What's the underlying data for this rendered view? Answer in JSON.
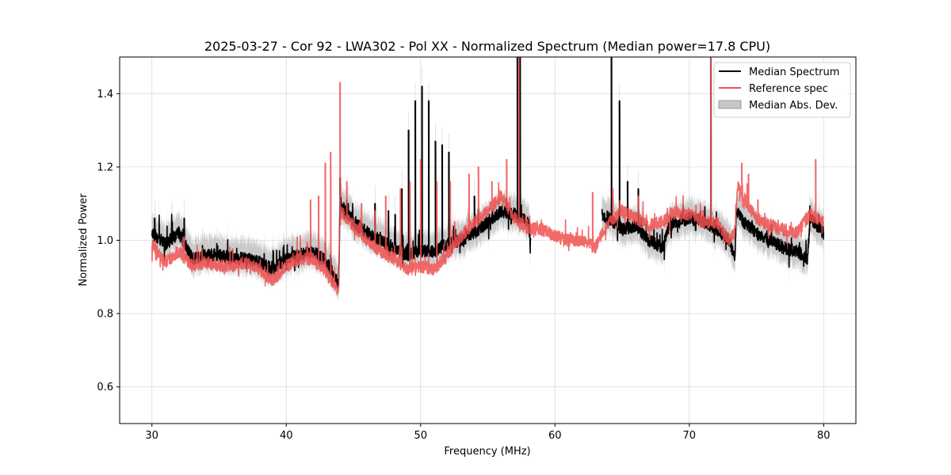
{
  "chart_data": {
    "type": "line",
    "title": "2025-03-27 - Cor 92 - LWA302 - Pol XX - Normalized Spectrum (Median power=17.8 CPU)",
    "xlabel": "Frequency (MHz)",
    "ylabel": "Normalized Power",
    "xlim": [
      27.6,
      82.4
    ],
    "ylim": [
      0.5,
      1.5
    ],
    "xticks": [
      30,
      40,
      50,
      60,
      70,
      80
    ],
    "yticks": [
      0.6,
      0.8,
      1.0,
      1.2,
      1.4
    ],
    "xtick_labels": [
      "30",
      "40",
      "50",
      "60",
      "70",
      "80"
    ],
    "ytick_labels": [
      "0.6",
      "0.8",
      "1.0",
      "1.2",
      "1.4"
    ],
    "grid": true,
    "legend_position": "top-right",
    "legend": [
      "Median Spectrum",
      "Reference spec",
      "Median Abs. Dev."
    ],
    "series": [
      {
        "name": "Median Spectrum",
        "color": "#000000",
        "baseline": [
          [
            30,
            1.02
          ],
          [
            31,
            0.99
          ],
          [
            32,
            1.02
          ],
          [
            33,
            0.95
          ],
          [
            34,
            0.96
          ],
          [
            35,
            0.96
          ],
          [
            36,
            0.95
          ],
          [
            37,
            0.95
          ],
          [
            38,
            0.94
          ],
          [
            39,
            0.92
          ],
          [
            40,
            0.95
          ],
          [
            41,
            0.96
          ],
          [
            42,
            0.97
          ],
          [
            43,
            0.94
          ],
          [
            43.9,
            0.88
          ],
          [
            44,
            1.1
          ],
          [
            45,
            1.05
          ],
          [
            46,
            1.02
          ],
          [
            47,
            1.0
          ],
          [
            48,
            0.98
          ],
          [
            49,
            0.96
          ],
          [
            50,
            0.97
          ],
          [
            51,
            0.97
          ],
          [
            52,
            0.99
          ],
          [
            53,
            1.0
          ],
          [
            54,
            1.02
          ],
          [
            55,
            1.05
          ],
          [
            56,
            1.08
          ],
          [
            57,
            1.07
          ],
          [
            58,
            1.05
          ],
          [
            58.2,
            1.0
          ],
          [
            58.3,
            null
          ],
          [
            63.5,
            1.07
          ],
          [
            64,
            1.06
          ],
          [
            65,
            1.03
          ],
          [
            66,
            1.04
          ],
          [
            67,
            1.0
          ],
          [
            68,
            0.98
          ],
          [
            68.5,
            1.04
          ],
          [
            69,
            1.05
          ],
          [
            70,
            1.06
          ],
          [
            71,
            1.05
          ],
          [
            72,
            1.03
          ],
          [
            73,
            1.0
          ],
          [
            73.4,
            0.95
          ],
          [
            73.5,
            1.08
          ],
          [
            74,
            1.05
          ],
          [
            75,
            1.02
          ],
          [
            76,
            1.0
          ],
          [
            77,
            0.98
          ],
          [
            78,
            0.97
          ],
          [
            78.8,
            0.95
          ],
          [
            79,
            1.06
          ],
          [
            80,
            1.02
          ]
        ],
        "spikes": [
          [
            30.2,
            1.06
          ],
          [
            31.5,
            1.05
          ],
          [
            32.4,
            1.06
          ],
          [
            44.0,
            1.17
          ],
          [
            44.6,
            1.1
          ],
          [
            46.6,
            1.1
          ],
          [
            47.6,
            1.08
          ],
          [
            48.1,
            1.07
          ],
          [
            48.6,
            1.14
          ],
          [
            49.1,
            1.3
          ],
          [
            49.6,
            1.38
          ],
          [
            50.1,
            1.42
          ],
          [
            50.6,
            1.38
          ],
          [
            51.1,
            1.27
          ],
          [
            51.6,
            1.26
          ],
          [
            52.1,
            1.24
          ],
          [
            54.0,
            1.12
          ],
          [
            57.2,
            1.5
          ],
          [
            57.4,
            1.5
          ],
          [
            64.2,
            1.5
          ],
          [
            64.8,
            1.38
          ],
          [
            65.4,
            1.16
          ],
          [
            66.2,
            1.14
          ],
          [
            71.6,
            1.5
          ]
        ],
        "mad_upper_offset": 0.04,
        "mad_lower_offset": 0.04
      },
      {
        "name": "Reference spec",
        "color": "#f05050",
        "baseline": [
          [
            30,
            0.99
          ],
          [
            31,
            0.94
          ],
          [
            32,
            0.97
          ],
          [
            33,
            0.93
          ],
          [
            34,
            0.94
          ],
          [
            35,
            0.93
          ],
          [
            36,
            0.93
          ],
          [
            37,
            0.94
          ],
          [
            38,
            0.92
          ],
          [
            39,
            0.89
          ],
          [
            40,
            0.93
          ],
          [
            41,
            0.95
          ],
          [
            42,
            0.95
          ],
          [
            43,
            0.91
          ],
          [
            43.9,
            0.86
          ],
          [
            44,
            1.08
          ],
          [
            45,
            1.04
          ],
          [
            46,
            1.0
          ],
          [
            47,
            0.97
          ],
          [
            48,
            0.95
          ],
          [
            49,
            0.92
          ],
          [
            50,
            0.93
          ],
          [
            51,
            0.92
          ],
          [
            52,
            0.96
          ],
          [
            53,
            1.01
          ],
          [
            54,
            1.05
          ],
          [
            55,
            1.08
          ],
          [
            56,
            1.12
          ],
          [
            57,
            1.06
          ],
          [
            58,
            1.03
          ],
          [
            59,
            1.03
          ],
          [
            60,
            1.01
          ],
          [
            61,
            1.0
          ],
          [
            62,
            1.0
          ],
          [
            63,
            0.98
          ],
          [
            64,
            1.05
          ],
          [
            65,
            1.08
          ],
          [
            66,
            1.06
          ],
          [
            67,
            1.04
          ],
          [
            68,
            1.05
          ],
          [
            69,
            1.08
          ],
          [
            70,
            1.07
          ],
          [
            71,
            1.05
          ],
          [
            72,
            1.05
          ],
          [
            73,
            1.0
          ],
          [
            73.4,
            1.02
          ],
          [
            73.6,
            1.15
          ],
          [
            74,
            1.12
          ],
          [
            75,
            1.06
          ],
          [
            76,
            1.04
          ],
          [
            77,
            1.03
          ],
          [
            78,
            1.02
          ],
          [
            79,
            1.07
          ],
          [
            80,
            1.05
          ]
        ],
        "spikes": [
          [
            41.8,
            1.11
          ],
          [
            42.4,
            1.12
          ],
          [
            42.9,
            1.21
          ],
          [
            43.3,
            1.24
          ],
          [
            44.0,
            1.43
          ],
          [
            44.5,
            1.16
          ],
          [
            45.6,
            1.1
          ],
          [
            46.6,
            1.08
          ],
          [
            47.4,
            1.12
          ],
          [
            48.5,
            1.14
          ],
          [
            49.2,
            1.16
          ],
          [
            50.0,
            1.22
          ],
          [
            51.2,
            1.16
          ],
          [
            52.2,
            1.16
          ],
          [
            53.6,
            1.18
          ],
          [
            54.3,
            1.2
          ],
          [
            55.3,
            1.16
          ],
          [
            56.4,
            1.22
          ],
          [
            57.3,
            1.5
          ],
          [
            62.8,
            1.13
          ],
          [
            64.3,
            1.14
          ],
          [
            66.2,
            1.12
          ],
          [
            71.6,
            1.5
          ],
          [
            73.9,
            1.21
          ],
          [
            74.4,
            1.18
          ],
          [
            75.1,
            1.11
          ],
          [
            79.4,
            1.22
          ]
        ]
      }
    ]
  }
}
